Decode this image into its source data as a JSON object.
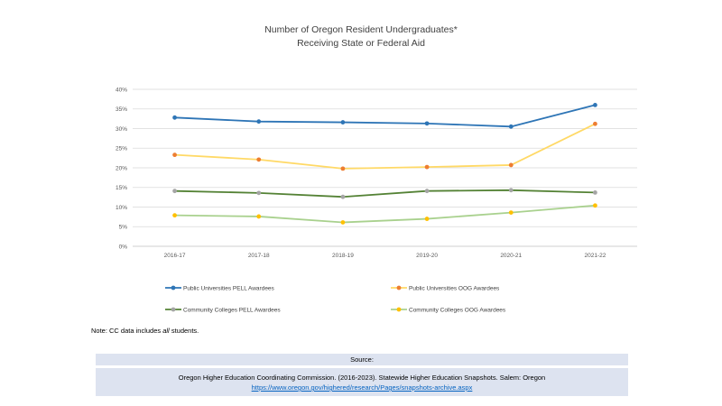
{
  "title_line1": "Number of Oregon Resident Undergraduates*",
  "title_line2": "Receiving State or Federal Aid",
  "note": {
    "prefix": "Note: CC data includes ",
    "emph": "all",
    "suffix": " students."
  },
  "source": {
    "header": "Source:",
    "citation": "Oregon Higher Education Coordinating Commission. (2016-2023). Statewide Higher Education Snapshots. Salem: Oregon",
    "link": "https://www.oregon.gov/highered/research/Pages/snapshots-archive.aspx"
  },
  "chart_data": {
    "type": "line",
    "title": "Number of Oregon Resident Undergraduates* Receiving State or Federal Aid",
    "categories": [
      "2016-17",
      "2017-18",
      "2018-19",
      "2019-20",
      "2020-21",
      "2021-22"
    ],
    "ylim": [
      0,
      40
    ],
    "yticks": [
      "0%",
      "5%",
      "10%",
      "15%",
      "20%",
      "25%",
      "30%",
      "35%",
      "40%"
    ],
    "grid": true,
    "legend_position": "bottom",
    "series": [
      {
        "name": "Public Universities PELL Awardees",
        "values": [
          32.8,
          31.8,
          31.6,
          31.3,
          30.5,
          36.0
        ],
        "line_color": "#2e75b6",
        "marker_color": "#2e75b6"
      },
      {
        "name": "Public Universities OOG Awardees",
        "values": [
          23.3,
          22.1,
          19.8,
          20.2,
          20.7,
          31.2
        ],
        "line_color": "#ffd966",
        "marker_color": "#ed7d31"
      },
      {
        "name": "Community Colleges PELL Awardees",
        "values": [
          14.1,
          13.6,
          12.6,
          14.1,
          14.3,
          13.7
        ],
        "line_color": "#548235",
        "marker_color": "#a5a5a5"
      },
      {
        "name": "Community Colleges OOG Awardees",
        "values": [
          7.9,
          7.6,
          6.1,
          7.0,
          8.6,
          10.4
        ],
        "line_color": "#a9d18e",
        "marker_color": "#ffc000"
      }
    ]
  }
}
